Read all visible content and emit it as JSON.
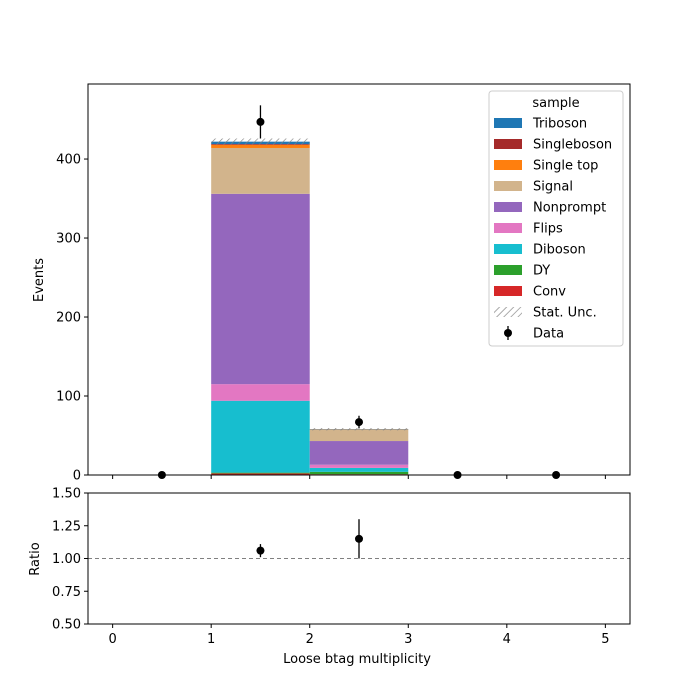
{
  "chart_data": [
    {
      "type": "bar",
      "stacked": true,
      "ylabel": "Events",
      "bin_edges": [
        0,
        1,
        2,
        3,
        4,
        5
      ],
      "xlim": [
        -0.25,
        5.25
      ],
      "ylim": [
        0,
        495
      ],
      "yticks": [
        0,
        100,
        200,
        300,
        400
      ],
      "xticks": [
        0,
        1,
        2,
        3,
        4,
        5
      ],
      "legend": {
        "title": "sample",
        "placement": "top-right"
      },
      "series": [
        {
          "name": "Conv",
          "color": "#d62728",
          "values": [
            0,
            2,
            1,
            0,
            0
          ]
        },
        {
          "name": "DY",
          "color": "#2ca02c",
          "values": [
            0,
            1,
            3,
            0,
            0
          ]
        },
        {
          "name": "Diboson",
          "color": "#17becf",
          "values": [
            0,
            91,
            5,
            0,
            0
          ]
        },
        {
          "name": "Flips",
          "color": "#e377c2",
          "values": [
            0,
            21,
            4,
            0,
            0
          ]
        },
        {
          "name": "Nonprompt",
          "color": "#9467bd",
          "values": [
            0,
            241,
            30,
            0,
            0
          ]
        },
        {
          "name": "Signal",
          "color": "#d2b48c",
          "values": [
            0,
            58,
            14,
            0,
            0
          ]
        },
        {
          "name": "Single top",
          "color": "#ff7f0e",
          "values": [
            0,
            4,
            0.5,
            0,
            0
          ]
        },
        {
          "name": "Singleboson",
          "color": "#a52a2a",
          "values": [
            0,
            1,
            0,
            0,
            0
          ]
        },
        {
          "name": "Triboson",
          "color": "#1f77b4",
          "values": [
            0,
            3,
            0.5,
            0,
            0
          ]
        }
      ],
      "stat_unc": {
        "name": "Stat. Unc.",
        "color": "#7f7f7f",
        "values": [
          0,
          4,
          1.5,
          0,
          0
        ]
      },
      "data": {
        "name": "Data",
        "x": [
          0.5,
          1.5,
          2.5,
          3.5,
          4.5
        ],
        "y": [
          0,
          447,
          67,
          0,
          0
        ],
        "yerr": [
          0,
          21,
          8,
          0,
          0
        ]
      }
    },
    {
      "type": "scatter",
      "xlabel": "Loose btag multiplicity",
      "ylabel": "Ratio",
      "xlim": [
        -0.25,
        5.25
      ],
      "ylim": [
        0.5,
        1.5
      ],
      "yticks": [
        "0.50",
        "0.75",
        "1.00",
        "1.25",
        "1.50"
      ],
      "xticks": [
        0,
        1,
        2,
        3,
        4,
        5
      ],
      "reference_line": 1.0,
      "points": {
        "x": [
          1.5,
          2.5
        ],
        "y": [
          1.06,
          1.15
        ],
        "yerr": [
          0.05,
          0.15
        ]
      }
    }
  ]
}
